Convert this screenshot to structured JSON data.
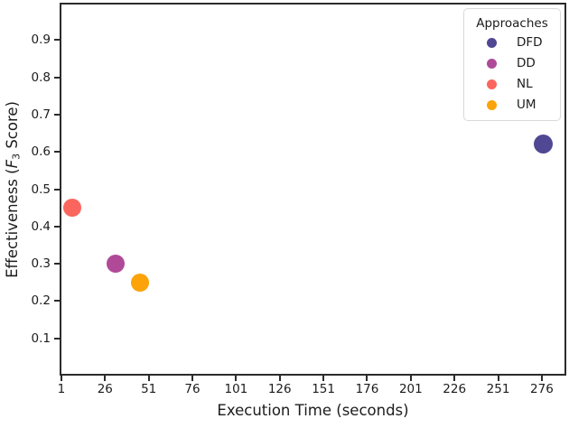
{
  "figure": {
    "background": "#ffffff",
    "text_color": "#1c1c1c",
    "axis_color": "#2b2b2b"
  },
  "chart_data": {
    "type": "scatter",
    "title": "",
    "xlabel": "Execution Time (seconds)",
    "ylabel": "Effectiveness (F3 Score)",
    "ylabel_parts": {
      "prefix": "Effectiveness (",
      "variable": "F",
      "subscript": "3",
      "suffix": " Score)"
    },
    "xlim": [
      0,
      290
    ],
    "ylim": [
      0,
      1.0
    ],
    "xticks": [
      1,
      26,
      51,
      76,
      101,
      126,
      151,
      176,
      201,
      226,
      251,
      276
    ],
    "yticks": [
      0.1,
      0.2,
      0.3,
      0.4,
      0.5,
      0.6,
      0.7,
      0.8,
      0.9
    ],
    "grid": false,
    "legend": {
      "title": "Approaches",
      "position": "upper-right"
    },
    "series": [
      {
        "name": "DFD",
        "color": "#504892",
        "marker_diameter": 21,
        "points": [
          {
            "x": 277,
            "y": 0.62
          }
        ]
      },
      {
        "name": "DD",
        "color": "#b04a98",
        "marker_diameter": 20,
        "points": [
          {
            "x": 32,
            "y": 0.3
          }
        ]
      },
      {
        "name": "NL",
        "color": "#fa665e",
        "marker_diameter": 20,
        "points": [
          {
            "x": 7,
            "y": 0.45
          }
        ]
      },
      {
        "name": "UM",
        "color": "#fba308",
        "marker_diameter": 20,
        "points": [
          {
            "x": 46,
            "y": 0.25
          }
        ]
      }
    ]
  }
}
